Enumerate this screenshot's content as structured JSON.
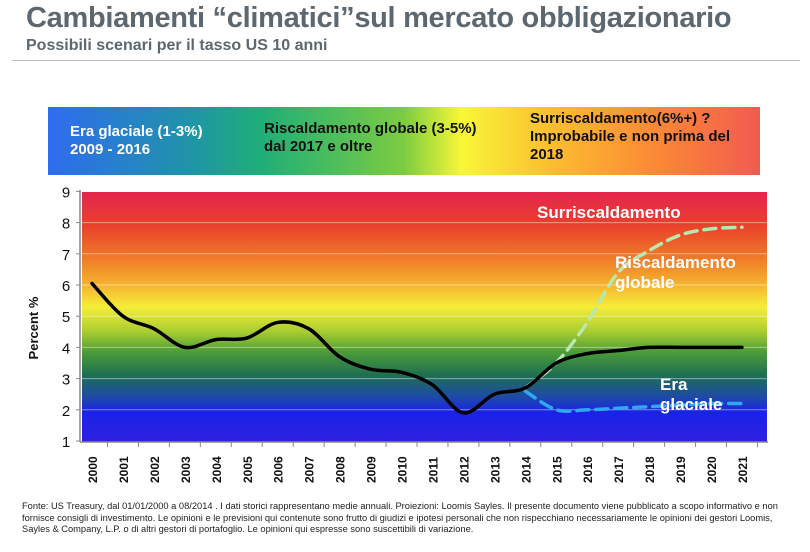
{
  "header": {
    "title": "Cambiamenti “climatici”sul mercato obbligazionario",
    "subtitle": "Possibili scenari per il tasso US 10 anni"
  },
  "banner": {
    "ice_line1": "Era glaciale (1-3%)",
    "ice_line2": "2009 - 2016",
    "warm_line1": "Riscaldamento globale (3-5%)",
    "warm_line2": "dal 2017 e oltre",
    "hot_line1": "Surriscaldamento(6%+) ?",
    "hot_line2": "Improbabile e non prima del",
    "hot_line3": "2018"
  },
  "chart_data": {
    "type": "line",
    "ylabel": "Percent %",
    "ylim": [
      1,
      9
    ],
    "yticks": [
      1,
      2,
      3,
      4,
      5,
      6,
      7,
      8,
      9
    ],
    "x": [
      2000,
      2001,
      2002,
      2003,
      2004,
      2005,
      2006,
      2007,
      2008,
      2009,
      2010,
      2011,
      2012,
      2013,
      2014,
      2015,
      2016,
      2017,
      2018,
      2019,
      2020,
      2021
    ],
    "series": [
      {
        "name": "US 10Y",
        "color": "#000000",
        "style": "solid",
        "x": [
          2000,
          2001,
          2002,
          2003,
          2004,
          2005,
          2006,
          2007,
          2008,
          2009,
          2010,
          2011,
          2012,
          2013,
          2014,
          2015,
          2016,
          2017,
          2018,
          2019,
          2020,
          2021
        ],
        "values": [
          6.05,
          5.0,
          4.6,
          4.0,
          4.25,
          4.3,
          4.8,
          4.6,
          3.7,
          3.3,
          3.2,
          2.8,
          1.9,
          2.5,
          2.7,
          3.5,
          3.8,
          3.9,
          4.0,
          4.0,
          4.0,
          4.0
        ]
      },
      {
        "name": "Riscaldamento globale",
        "color": "#b8e8b0",
        "style": "dashed",
        "x": [
          2014,
          2015,
          2016,
          2017,
          2018,
          2019,
          2020,
          2021
        ],
        "values": [
          2.7,
          3.5,
          4.8,
          6.4,
          7.1,
          7.6,
          7.8,
          7.85
        ]
      },
      {
        "name": "Era glaciale",
        "color": "#30a8f0",
        "style": "dashed",
        "x": [
          2014,
          2015,
          2016,
          2017,
          2018,
          2019,
          2020,
          2021
        ],
        "values": [
          2.6,
          2.0,
          2.0,
          2.05,
          2.1,
          2.15,
          2.2,
          2.2
        ]
      }
    ],
    "annotations": [
      "Surriscaldamento",
      "Riscaldamento",
      "globale",
      "Era",
      "glaciale"
    ],
    "grid": true
  },
  "footer": "Fonte: US Treasury, dal 01/01/2000 a 08/2014 . I dati storici rappresentano medie annuali. Proiezioni: Loomis Sayles. Il presente documento viene pubblicato a scopo informativo e non fornisce consigli di investimento. Le opinioni e le previsioni qui contenute sono frutto di giudizi e ipotesi personali che non rispecchiano necessariamente le opinioni dei gestori Loomis, Sayles & Company, L.P. o di altri gestori di portafoglio. Le opinioni qui espresse sono suscettibili di variazione."
}
